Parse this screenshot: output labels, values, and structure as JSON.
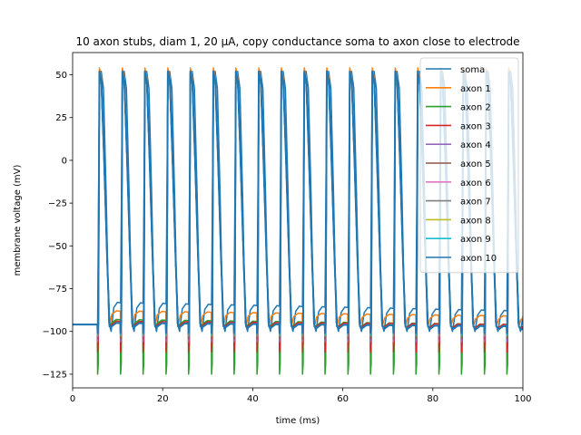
{
  "chart_data": {
    "type": "line",
    "title": "10 axon stubs, diam 1, 20 µA, copy conductance soma to axon close to electrode",
    "xlabel": "time (ms)",
    "ylabel": "membrane voltage (mV)",
    "xlim": [
      0,
      100
    ],
    "ylim": [
      -133,
      63
    ],
    "xticks": [
      0,
      20,
      40,
      60,
      80,
      100
    ],
    "yticks": [
      -125,
      -100,
      -75,
      -50,
      -25,
      0,
      25,
      50
    ],
    "legend_position": "upper right",
    "grid": false,
    "spike_times_ms": [
      5.5,
      10.6,
      15.6,
      20.7,
      25.7,
      30.8,
      35.8,
      40.9,
      45.9,
      51.0,
      56.0,
      61.1,
      66.1,
      71.2,
      76.2,
      81.3,
      86.3,
      91.4,
      96.4
    ],
    "series": [
      {
        "name": "soma",
        "color": "#1f77b4",
        "rest": -96,
        "peak": 52,
        "trough": -100,
        "baseline_after": -83,
        "baseline_end": -88
      },
      {
        "name": "axon 1",
        "color": "#ff7f0e",
        "rest": -96,
        "peak": 54,
        "trough": -98,
        "baseline_after": -88,
        "baseline_end": -91
      },
      {
        "name": "axon 2",
        "color": "#2ca02c",
        "rest": -96,
        "peak": 50,
        "trough": -125,
        "baseline_after": -93,
        "baseline_end": -96
      },
      {
        "name": "axon 3",
        "color": "#d62728",
        "rest": -96,
        "peak": 51,
        "trough": -112,
        "baseline_after": -94,
        "baseline_end": -96
      },
      {
        "name": "axon 4",
        "color": "#9467bd",
        "rest": -96,
        "peak": 51,
        "trough": -106,
        "baseline_after": -95,
        "baseline_end": -97
      },
      {
        "name": "axon 5",
        "color": "#8c564b",
        "rest": -96,
        "peak": 51,
        "trough": -104,
        "baseline_after": -95,
        "baseline_end": -97
      },
      {
        "name": "axon 6",
        "color": "#e377c2",
        "rest": -96,
        "peak": 51,
        "trough": -103,
        "baseline_after": -95,
        "baseline_end": -97
      },
      {
        "name": "axon 7",
        "color": "#7f7f7f",
        "rest": -96,
        "peak": 51,
        "trough": -103,
        "baseline_after": -95,
        "baseline_end": -97
      },
      {
        "name": "axon 8",
        "color": "#bcbd22",
        "rest": -96,
        "peak": 51,
        "trough": -102,
        "baseline_after": -95,
        "baseline_end": -97
      },
      {
        "name": "axon 9",
        "color": "#17becf",
        "rest": -96,
        "peak": 51,
        "trough": -102,
        "baseline_after": -95,
        "baseline_end": -97
      },
      {
        "name": "axon 10",
        "color": "#1f77b4",
        "rest": -96,
        "peak": 52,
        "trough": -101,
        "baseline_after": -95,
        "baseline_end": -97
      }
    ]
  }
}
